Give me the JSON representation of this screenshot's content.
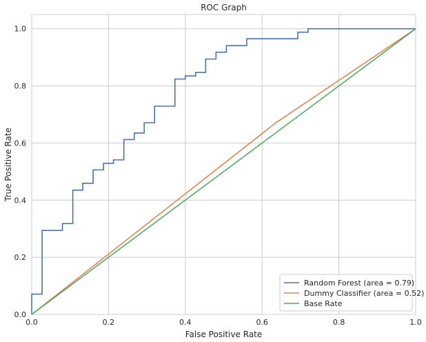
{
  "chart_data": {
    "type": "line",
    "title": "ROC Graph",
    "xlabel": "False Positive Rate",
    "ylabel": "True Positive Rate",
    "xlim": [
      0,
      1
    ],
    "ylim": [
      0,
      1.05
    ],
    "xticks": [
      0.0,
      0.2,
      0.4,
      0.6,
      0.8,
      1.0
    ],
    "xtick_labels": [
      "0.0",
      "0.2",
      "0.4",
      "0.6",
      "0.8",
      "1.0"
    ],
    "yticks": [
      0.0,
      0.2,
      0.4,
      0.6,
      0.8,
      1.0
    ],
    "ytick_labels": [
      "0.0",
      "0.2",
      "0.4",
      "0.6",
      "0.8",
      "1.0"
    ],
    "grid": true,
    "legend_position": "lower-right",
    "series": [
      {
        "name": "Random Forest (area = 0.79)",
        "color": "#4c72b0",
        "x": [
          0.0,
          0.0,
          0.027,
          0.027,
          0.08,
          0.08,
          0.107,
          0.107,
          0.133,
          0.133,
          0.16,
          0.16,
          0.187,
          0.187,
          0.213,
          0.213,
          0.24,
          0.24,
          0.267,
          0.267,
          0.293,
          0.293,
          0.32,
          0.32,
          0.373,
          0.373,
          0.4,
          0.4,
          0.427,
          0.427,
          0.453,
          0.453,
          0.48,
          0.48,
          0.507,
          0.507,
          0.56,
          0.56,
          0.693,
          0.693,
          0.72,
          0.72,
          1.0
        ],
        "y": [
          0.0,
          0.071,
          0.071,
          0.294,
          0.294,
          0.318,
          0.318,
          0.435,
          0.435,
          0.459,
          0.459,
          0.506,
          0.506,
          0.529,
          0.529,
          0.541,
          0.541,
          0.612,
          0.612,
          0.635,
          0.635,
          0.671,
          0.671,
          0.729,
          0.729,
          0.824,
          0.824,
          0.835,
          0.835,
          0.847,
          0.847,
          0.894,
          0.894,
          0.918,
          0.918,
          0.941,
          0.941,
          0.965,
          0.965,
          0.988,
          0.988,
          1.0,
          1.0
        ]
      },
      {
        "name": "Dummy Classifier (area = 0.52)",
        "color": "#dd8452",
        "x": [
          0.0,
          0.635,
          1.0
        ],
        "y": [
          0.0,
          0.67,
          1.0
        ]
      },
      {
        "name": "Base Rate",
        "color": "#55a868",
        "x": [
          0.0,
          1.0
        ],
        "y": [
          0.0,
          1.0
        ]
      }
    ]
  }
}
